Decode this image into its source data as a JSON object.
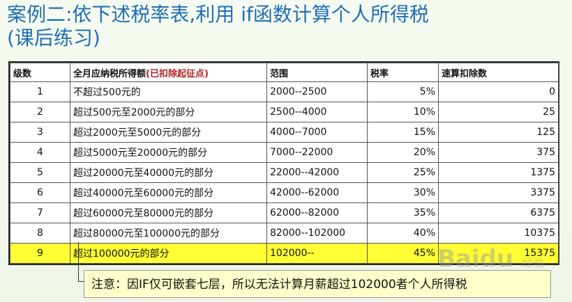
{
  "title": {
    "line1": "案例二:依下述税率表,利用 if函数计算个人所得税",
    "line2": "(课后练习)"
  },
  "table": {
    "headers": {
      "level": "级数",
      "income": "全月应纳税所得额",
      "income_note": "(已扣除起征点)",
      "range": "范围",
      "rate": "税率",
      "deduction": "速算扣除数"
    },
    "rows": [
      {
        "level": "1",
        "income": "不超过500元的",
        "range": "2000--2500",
        "rate": "5%",
        "deduction": "0"
      },
      {
        "level": "2",
        "income": "超过500元至2000元的部分",
        "range": "2500--4000",
        "rate": "10%",
        "deduction": "25"
      },
      {
        "level": "3",
        "income": "超过2000元至5000元的部分",
        "range": "4000--7000",
        "rate": "15%",
        "deduction": "125"
      },
      {
        "level": "4",
        "income": "超过5000元至20000元的部分",
        "range": "7000--22000",
        "rate": "20%",
        "deduction": "375"
      },
      {
        "level": "5",
        "income": "超过20000元至40000元的部分",
        "range": "22000--42000",
        "rate": "25%",
        "deduction": "1375"
      },
      {
        "level": "6",
        "income": "超过40000元至60000元的部分",
        "range": "42000--62000",
        "rate": "30%",
        "deduction": "3375"
      },
      {
        "level": "7",
        "income": "超过60000元至80000元的部分",
        "range": "62000--82000",
        "rate": "35%",
        "deduction": "6375"
      },
      {
        "level": "8",
        "income": "超过80000元至100000元的部分",
        "range": "82000--102000",
        "rate": "40%",
        "deduction": "10375"
      },
      {
        "level": "9",
        "income": "超过100000元的部分",
        "range": "102000--",
        "rate": "45%",
        "deduction": "15375"
      }
    ],
    "highlight_color": "#ffff33"
  },
  "callout": {
    "text": "注意：因IF仅可嵌套七层，所以无法计算月薪超过102000者个人所得税"
  },
  "watermark": {
    "brand": "Baidu",
    "sub": "经验"
  }
}
